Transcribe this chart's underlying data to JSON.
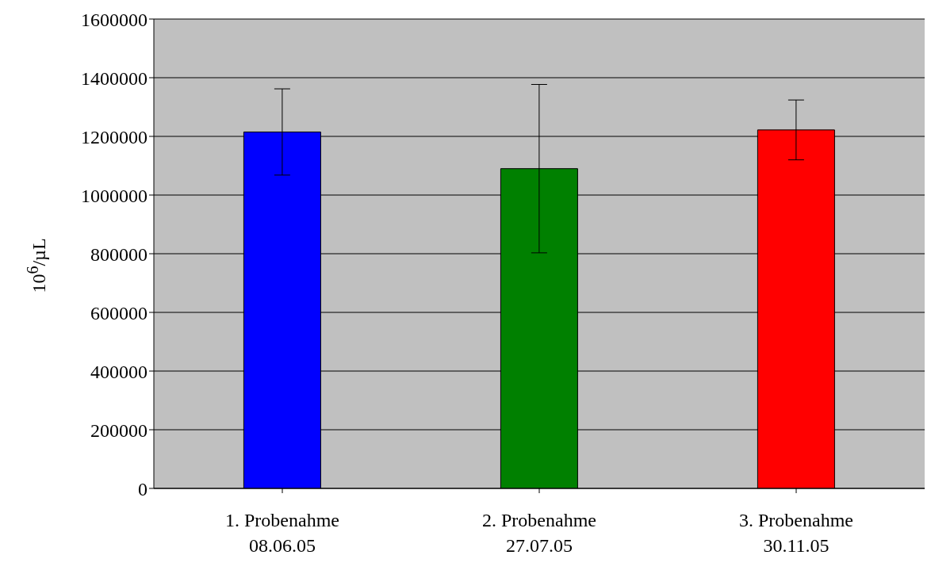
{
  "chart_data": {
    "type": "bar",
    "ylabel": "10$^{6}$/µL",
    "categories": [
      "1. Probenahme\n08.06.05",
      "2. Probenahme\n27.07.05",
      "3. Probenahme\n30.11.05"
    ],
    "values": [
      1215000,
      1090000,
      1222000
    ],
    "colors": [
      "#0000ff",
      "#008000",
      "#ff0000"
    ],
    "errors": [
      147000,
      287000,
      102000
    ],
    "ylim": [
      0,
      1600000
    ],
    "yticks": [
      0,
      200000,
      400000,
      600000,
      800000,
      1000000,
      1200000,
      1400000,
      1600000
    ],
    "grid": "y"
  }
}
